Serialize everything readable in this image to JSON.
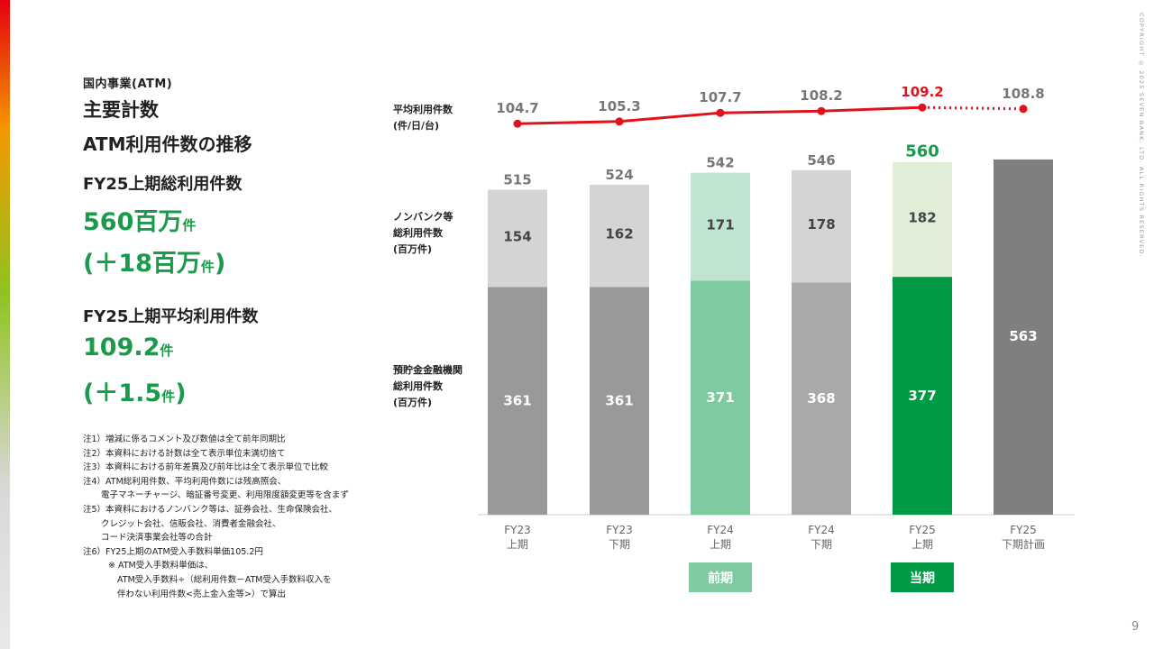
{
  "segment": "国内事業(ATM)",
  "title_main": "主要計数",
  "title_sub": "ATM利用件数の推移",
  "kpis": [
    {
      "label": "FY25上期総利用件数",
      "value": "560百万",
      "unit": "件",
      "diff_prefix": "(＋18百万",
      "diff_unit": "件",
      "diff_suffix": ")"
    },
    {
      "label": "FY25上期平均利用件数",
      "value": "109.2",
      "unit": "件",
      "diff_prefix": "(＋1.5",
      "diff_unit": "件",
      "diff_suffix": ")"
    }
  ],
  "notes": [
    "注1）増減に係るコメント及び数値は全て前年同期比",
    "注2）本資料における計数は全て表示単位未満切捨て",
    "注3）本資料における前年差異及び前年比は全て表示単位で比較",
    "注4）ATM総利用件数、平均利用件数には残高照会、",
    "電子マネーチャージ、暗証番号変更、利用限度額変更等を含まず",
    "注5）本資料におけるノンバンク等は、証券会社、生命保険会社、",
    "クレジット会社、信販会社、消費者金融会社、",
    "コード決済事業会社等の合計",
    "注6）FY25上期のATM受入手数料単価105.2円",
    "※ ATM受入手数料単価は、",
    "ATM受入手数料÷（総利用件数－ATM受入手数料収入を",
    "伴わない利用件数<売上金入金等>）で算出"
  ],
  "copyright": "COPYRIGHT © 2025 SEVEN BANK, LTD. ALL RIGHTS RESERVED.",
  "page_number": "9",
  "chart_data": {
    "type": "bar",
    "stacked": true,
    "categories": [
      [
        "FY23",
        "上期"
      ],
      [
        "FY23",
        "下期"
      ],
      [
        "FY24",
        "上期"
      ],
      [
        "FY24",
        "下期"
      ],
      [
        "FY25",
        "上期"
      ],
      [
        "FY25",
        "下期計画"
      ]
    ],
    "series": [
      {
        "name": [
          "預貯金金融機関",
          "総利用件数",
          "(百万件)"
        ],
        "values": [
          361,
          361,
          371,
          368,
          377,
          null
        ]
      },
      {
        "name": [
          "ノンバンク等",
          "総利用件数",
          "(百万件)"
        ],
        "values": [
          154,
          162,
          171,
          178,
          182,
          null
        ]
      }
    ],
    "plan": {
      "category_index": 5,
      "value": 563
    },
    "totals": [
      515,
      524,
      542,
      546,
      560,
      null
    ],
    "line": {
      "name": [
        "平均利用件数",
        "(件/日/台)"
      ],
      "values": [
        104.7,
        105.3,
        107.7,
        108.2,
        109.2,
        108.8
      ],
      "forecast_from_index": 4
    },
    "period_tags": [
      {
        "label": "前期",
        "category_index": 2
      },
      {
        "label": "当期",
        "category_index": 4
      }
    ],
    "colors": {
      "bottom": [
        "#999999",
        "#999999",
        "#7fcba1",
        "#a9a9a9",
        "#009a44"
      ],
      "top": [
        "#d4d4d4",
        "#d4d4d4",
        "#bfe4d0",
        "#d4d4d4",
        "#e0eed8"
      ],
      "plan": "#7f7f7f",
      "line": "#e0121b",
      "highlight_text": "#1a9b4b",
      "line_highlight": "#e0121b",
      "tag_prev": "#7fcba1",
      "tag_curr": "#009a44"
    },
    "xlabel": "",
    "ylabel": "",
    "ylim": [
      0,
      600
    ],
    "legend": "left-inline",
    "grid": false
  }
}
